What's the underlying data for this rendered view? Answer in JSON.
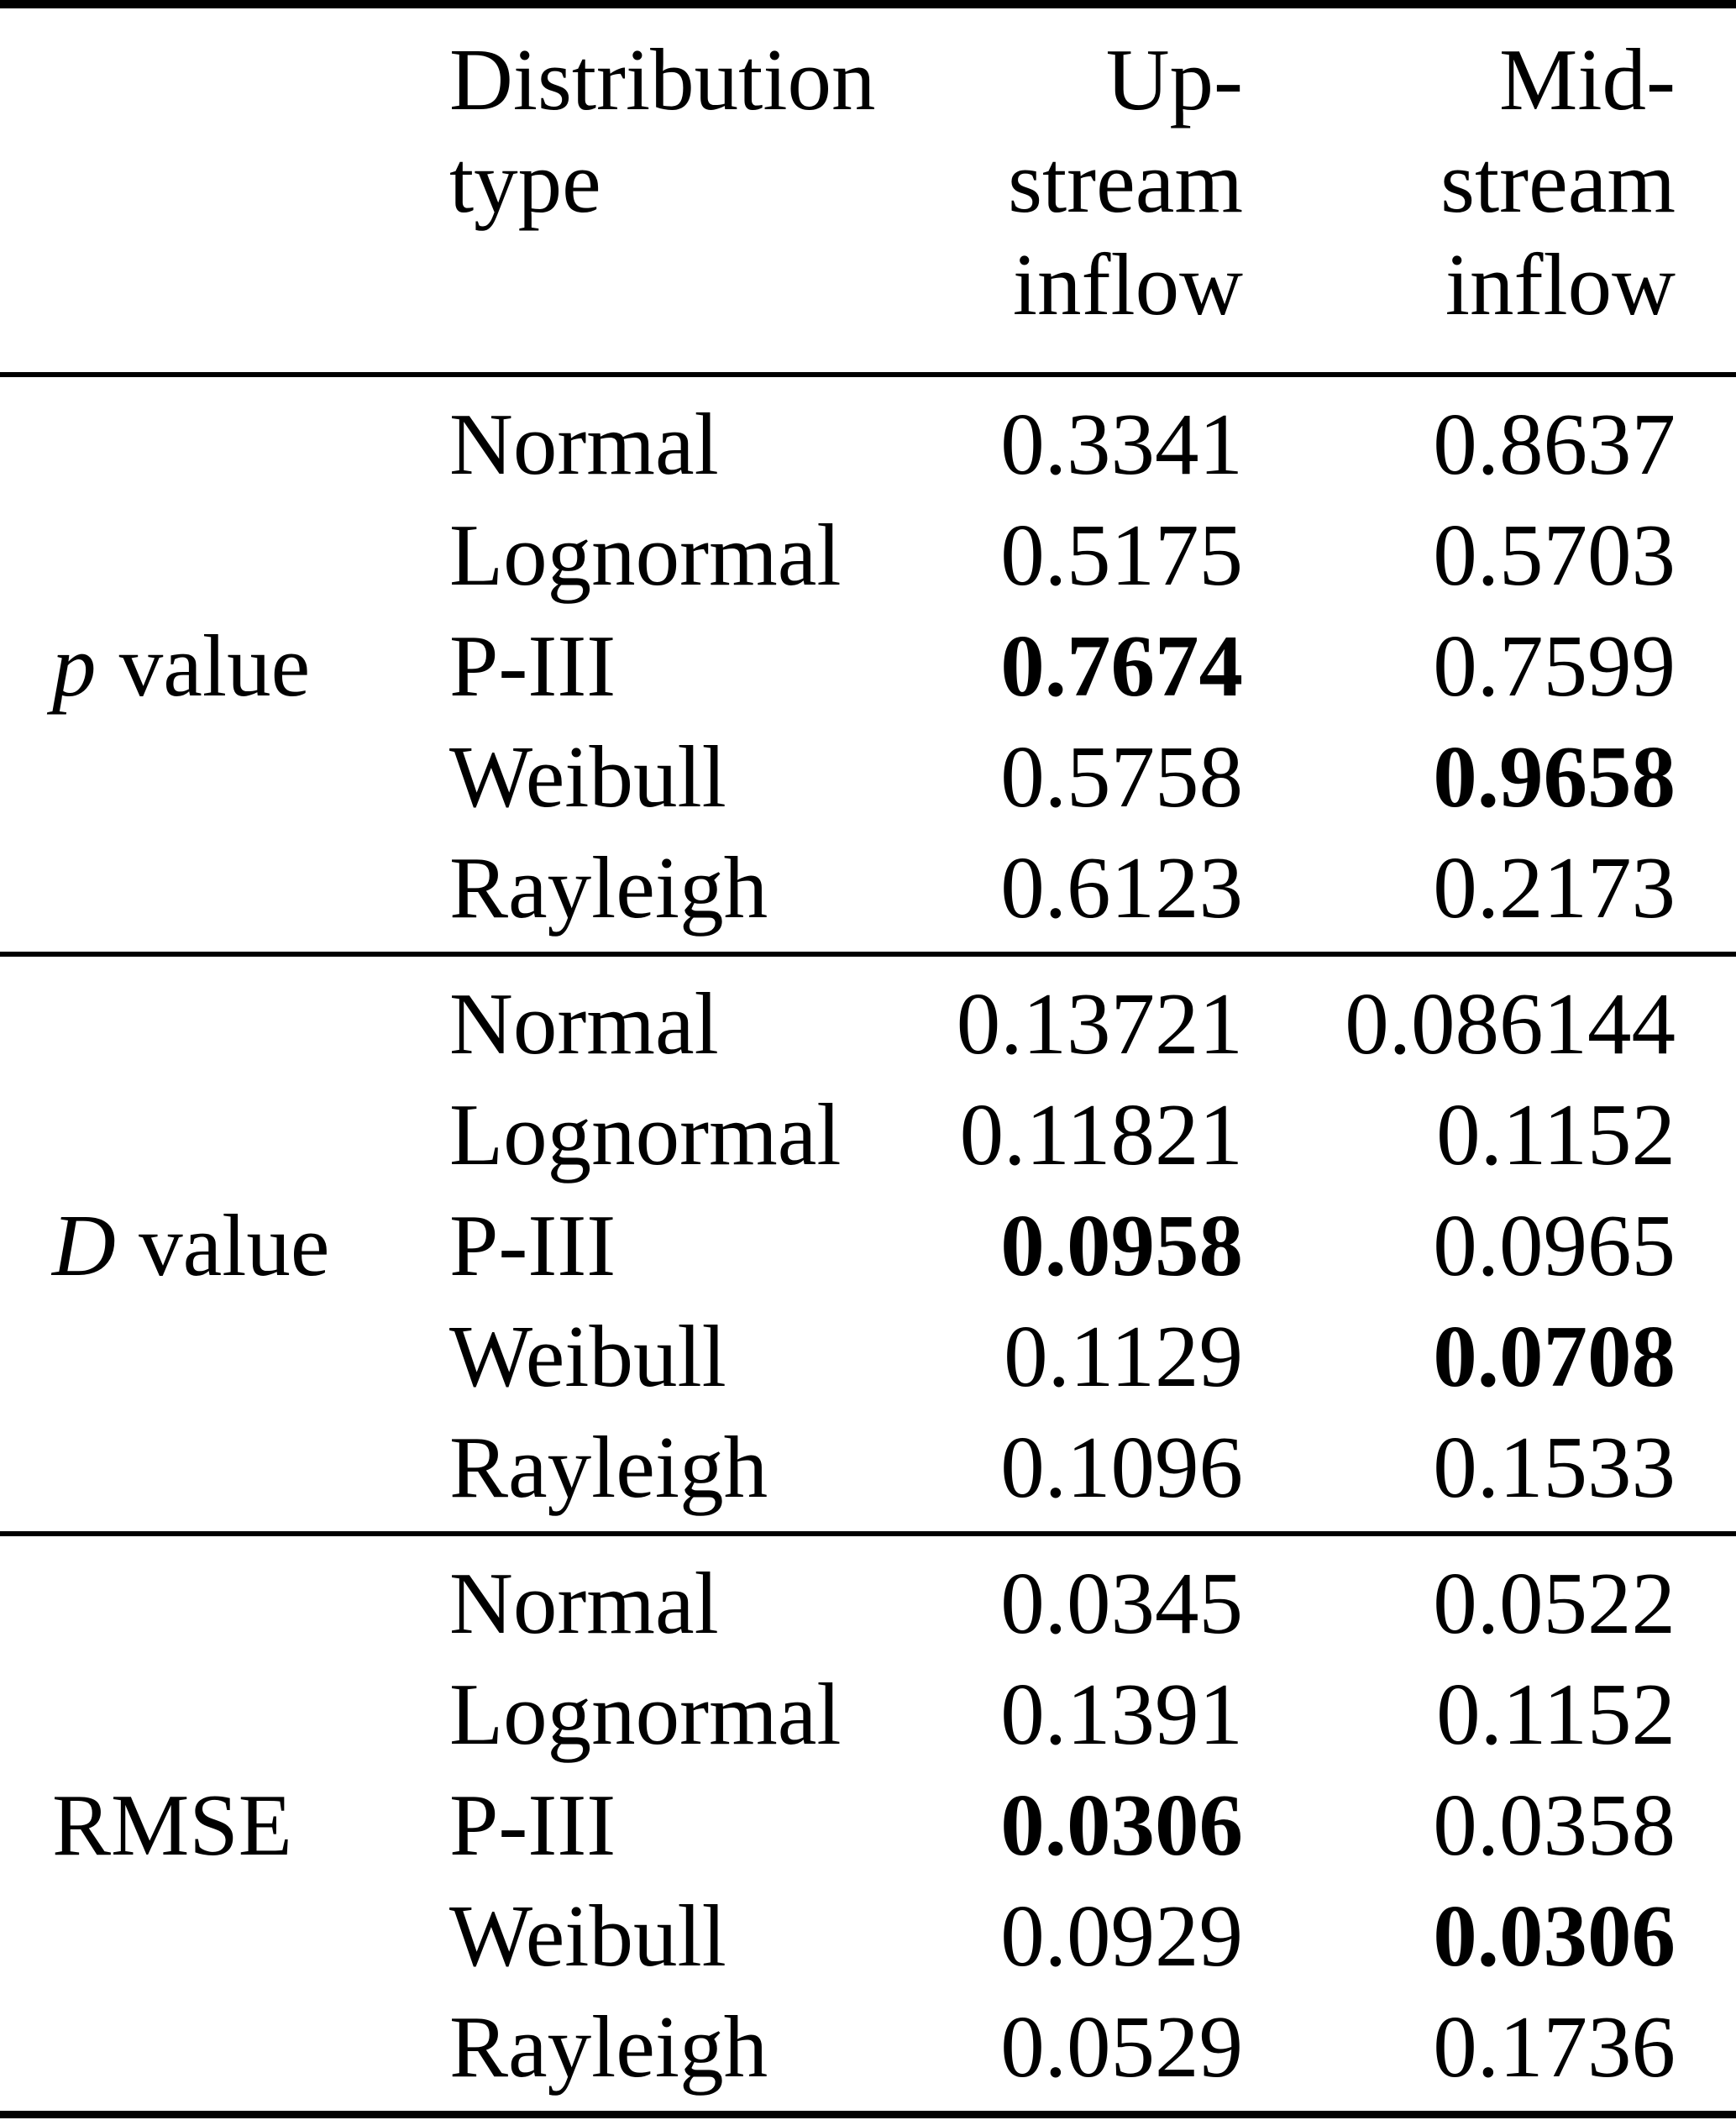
{
  "table": {
    "header": {
      "metric": "",
      "distribution_lines": [
        "Distribution",
        "type"
      ],
      "upstream_lines": [
        "Up-",
        "stream",
        "inflow"
      ],
      "midstream_lines": [
        "Mid-",
        "stream",
        "inflow"
      ]
    },
    "sections": [
      {
        "metric": {
          "italic_symbol": "p",
          "rest": "value"
        },
        "rows": [
          {
            "dist": "Normal",
            "up": "0.3341",
            "up_bold": false,
            "mid": "0.8637",
            "mid_bold": false
          },
          {
            "dist": "Lognormal",
            "up": "0.5175",
            "up_bold": false,
            "mid": "0.5703",
            "mid_bold": false
          },
          {
            "dist": "P-III",
            "up": "0.7674",
            "up_bold": true,
            "mid": "0.7599",
            "mid_bold": false
          },
          {
            "dist": "Weibull",
            "up": "0.5758",
            "up_bold": false,
            "mid": "0.9658",
            "mid_bold": true
          },
          {
            "dist": "Rayleigh",
            "up": "0.6123",
            "up_bold": false,
            "mid": "0.2173",
            "mid_bold": false
          }
        ]
      },
      {
        "metric": {
          "italic_symbol": "D",
          "rest": "value"
        },
        "rows": [
          {
            "dist": "Normal",
            "up": "0.13721",
            "up_bold": false,
            "mid": "0.086144",
            "mid_bold": false
          },
          {
            "dist": "Lognormal",
            "up": "0.11821",
            "up_bold": false,
            "mid": "0.1152",
            "mid_bold": false
          },
          {
            "dist": "P-III",
            "up": "0.0958",
            "up_bold": true,
            "mid": "0.0965",
            "mid_bold": false
          },
          {
            "dist": "Weibull",
            "up": "0.1129",
            "up_bold": false,
            "mid": "0.0708",
            "mid_bold": true
          },
          {
            "dist": "Rayleigh",
            "up": "0.1096",
            "up_bold": false,
            "mid": "0.1533",
            "mid_bold": false
          }
        ]
      },
      {
        "metric": {
          "italic_symbol": "",
          "rest": "RMSE"
        },
        "rows": [
          {
            "dist": "Normal",
            "up": "0.0345",
            "up_bold": false,
            "mid": "0.0522",
            "mid_bold": false
          },
          {
            "dist": "Lognormal",
            "up": "0.1391",
            "up_bold": false,
            "mid": "0.1152",
            "mid_bold": false
          },
          {
            "dist": "P-III",
            "up": "0.0306",
            "up_bold": true,
            "mid": "0.0358",
            "mid_bold": false
          },
          {
            "dist": "Weibull",
            "up": "0.0929",
            "up_bold": false,
            "mid": "0.0306",
            "mid_bold": true
          },
          {
            "dist": "Rayleigh",
            "up": "0.0529",
            "up_bold": false,
            "mid": "0.1736",
            "mid_bold": false
          }
        ]
      }
    ]
  }
}
